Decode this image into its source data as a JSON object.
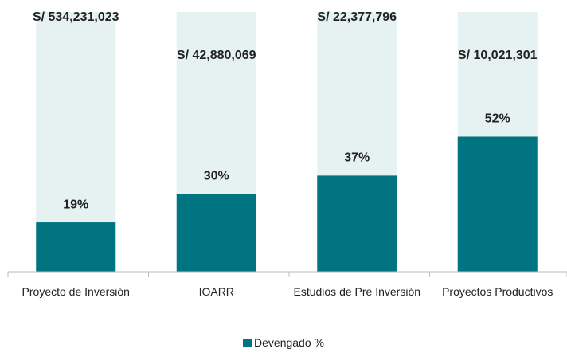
{
  "chart_data": {
    "type": "bar",
    "categories": [
      "Proyecto de Inversión",
      "IOARR",
      "Estudios de Pre Inversión",
      "Proyectos Productivos"
    ],
    "series": [
      {
        "name": "Devengado %",
        "color": "#007481",
        "values": [
          19,
          30,
          37,
          52
        ],
        "value_labels": [
          "19%",
          "30%",
          "37%",
          "52%"
        ]
      }
    ],
    "annotations": [
      "S/ 534,231,023",
      "S/ 42,880,069",
      "S/ 22,377,796",
      "S/ 10,021,301"
    ],
    "background_color": "#e6f2f2",
    "ylim": [
      0,
      100
    ],
    "legend": "bottom"
  }
}
